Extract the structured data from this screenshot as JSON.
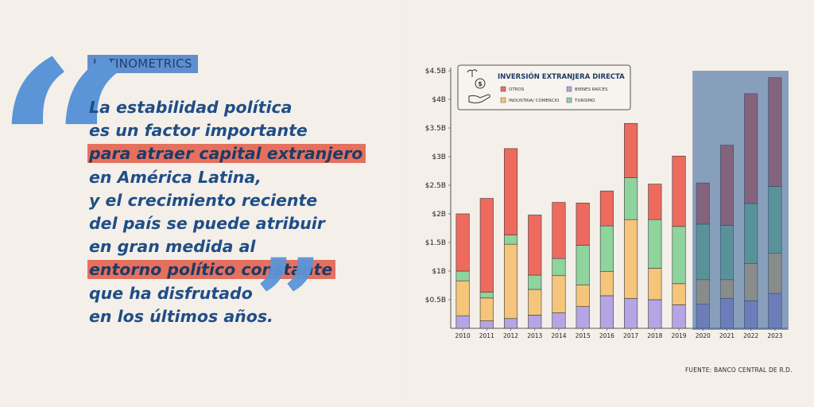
{
  "brand": "LATINOMETRICS",
  "quote": {
    "open_mark": "“",
    "close_mark": "”",
    "lines": [
      {
        "text": "La estabilidad política",
        "highlight": false
      },
      {
        "text": "es un factor importante",
        "highlight": false
      },
      {
        "text": "para atraer capital extranjero",
        "highlight": true
      },
      {
        "text": "en América Latina,",
        "highlight": false
      },
      {
        "text": "y el crecimiento reciente",
        "highlight": false
      },
      {
        "text": "del país se puede atribuir",
        "highlight": false
      },
      {
        "text": "en gran medida al",
        "highlight": false
      },
      {
        "text": "entorno político constante",
        "highlight": true
      },
      {
        "text": "que ha disfrutado",
        "highlight": false
      },
      {
        "text": "en los últimos años.",
        "highlight": false
      }
    ]
  },
  "source": "FUENTE: BANCO CENTRAL DE R.D.",
  "colors": {
    "accent_blue": "#5b95d8",
    "text_navy": "#1f4e86",
    "highlight_red": "#e5705e",
    "background": "#f4efe9",
    "shade_overlay": "#2f5d98"
  },
  "chart_data": {
    "type": "bar",
    "stacked": true,
    "title": "INVERSIÓN EXTRANJERA DIRECTA",
    "icon": "money-plant-icon",
    "categories": [
      "2010",
      "2011",
      "2012",
      "2013",
      "2014",
      "2015",
      "2016",
      "2017",
      "2018",
      "2019",
      "2020",
      "2021",
      "2022",
      "2023"
    ],
    "y_ticks": [
      "$0.5B",
      "$1B",
      "$1.5B",
      "$2B",
      "$2.5B",
      "$3B",
      "$3.5B",
      "$4B",
      "$4.5B"
    ],
    "y_tick_values": [
      0.5,
      1,
      1.5,
      2,
      2.5,
      3,
      3.5,
      4,
      4.5
    ],
    "ylim": [
      0,
      4.5
    ],
    "highlighted_range": [
      "2020",
      "2023"
    ],
    "legend_order": [
      "OTROS",
      "BIENES RAÍCES",
      "INDUSTRIA/ COMERCIO",
      "TURISMO"
    ],
    "series": [
      {
        "name": "BIENES RAÍCES",
        "color": "#b7a4e4",
        "values": [
          0.22,
          0.13,
          0.17,
          0.23,
          0.27,
          0.38,
          0.57,
          0.52,
          0.5,
          0.41,
          0.42,
          0.52,
          0.48,
          0.61
        ]
      },
      {
        "name": "INDUSTRIA/ COMERCIO",
        "color": "#f4c57b",
        "values": [
          0.61,
          0.4,
          1.3,
          0.45,
          0.65,
          0.38,
          0.42,
          1.38,
          0.55,
          0.37,
          0.43,
          0.33,
          0.65,
          0.7
        ]
      },
      {
        "name": "TURISMO",
        "color": "#8fd39e",
        "values": [
          0.17,
          0.1,
          0.16,
          0.25,
          0.3,
          0.69,
          0.8,
          0.73,
          0.85,
          1.0,
          0.97,
          0.95,
          1.05,
          1.17
        ]
      },
      {
        "name": "OTROS",
        "color": "#ec6b5e",
        "values": [
          1.0,
          1.64,
          1.51,
          1.05,
          0.98,
          0.74,
          0.61,
          0.95,
          0.62,
          1.23,
          0.72,
          1.4,
          1.92,
          1.9
        ]
      }
    ]
  }
}
